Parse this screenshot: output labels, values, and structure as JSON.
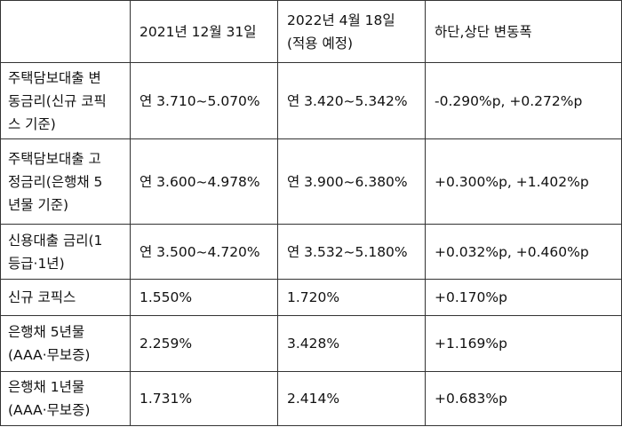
{
  "table": {
    "header": {
      "blank": "",
      "col1": "2021년 12월 31일",
      "col2_line1": "2022년 4월 18일",
      "col2_line2": "(적용 예정)",
      "col3": "하단,상단 변동폭"
    },
    "rows": [
      {
        "label_lines": [
          "주택담보대출 변",
          "동금리(신규 코픽",
          "스 기준)"
        ],
        "v2021": "연 3.710~5.070%",
        "v2022": "연 3.420~5.342%",
        "change": "-0.290%p, +0.272%p"
      },
      {
        "label_lines": [
          "주택담보대출 고",
          "정금리(은행채 5",
          "년물 기준)"
        ],
        "v2021": "연 3.600~4.978%",
        "v2022": "연 3.900~6.380%",
        "change": "+0.300%p, +1.402%p"
      },
      {
        "label_lines": [
          "신용대출 금리(1",
          "등급·1년)"
        ],
        "v2021": "연 3.500~4.720%",
        "v2022": "연 3.532~5.180%",
        "change": "+0.032%p, +0.460%p"
      },
      {
        "label_lines": [
          "신규 코픽스"
        ],
        "v2021": "1.550%",
        "v2022": "1.720%",
        "change": "+0.170%p"
      },
      {
        "label_lines": [
          "은행채 5년물",
          "(AAA·무보증)"
        ],
        "v2021": "2.259%",
        "v2022": "3.428%",
        "change": "+1.169%p"
      },
      {
        "label_lines": [
          "은행채 1년물",
          "(AAA·무보증)"
        ],
        "v2021": "1.731%",
        "v2022": "2.414%",
        "change": "+0.683%p"
      }
    ]
  }
}
